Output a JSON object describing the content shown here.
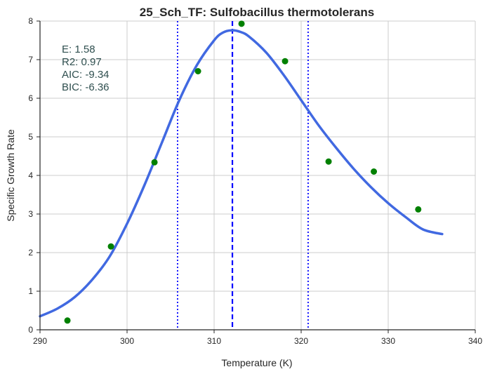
{
  "chart_data": {
    "type": "line",
    "title": "25_Sch_TF: Sulfobacillus thermotolerans",
    "xlabel": "Temperature (K)",
    "ylabel": "Specific Growth Rate",
    "xlim": [
      290,
      340
    ],
    "ylim": [
      0,
      8
    ],
    "xticks": [
      290,
      300,
      310,
      320,
      330,
      340
    ],
    "yticks": [
      0,
      1,
      2,
      3,
      4,
      5,
      6,
      7,
      8
    ],
    "grid": true,
    "stats": [
      "E:  1.58",
      "R2:  0.97",
      "AIC: -9.34",
      "BIC: -6.36"
    ],
    "points": {
      "color": "#008000",
      "x": [
        293.15,
        298.15,
        303.15,
        308.15,
        313.15,
        318.15,
        323.15,
        328.35,
        333.45
      ],
      "y": [
        0.24,
        2.16,
        4.34,
        6.7,
        7.93,
        6.96,
        4.36,
        4.1,
        3.12
      ]
    },
    "fit_curve": {
      "color": "#4169e1",
      "x": [
        290,
        292,
        294,
        296,
        298,
        300,
        302,
        304,
        306,
        308,
        310,
        311,
        312,
        313,
        314,
        316,
        318,
        320,
        322,
        324,
        326,
        328,
        330,
        332,
        334,
        336.2
      ],
      "y": [
        0.35,
        0.55,
        0.85,
        1.3,
        1.9,
        2.75,
        3.75,
        4.85,
        5.95,
        6.85,
        7.5,
        7.7,
        7.76,
        7.72,
        7.6,
        7.18,
        6.6,
        5.95,
        5.3,
        4.72,
        4.18,
        3.7,
        3.28,
        2.92,
        2.6,
        2.48
      ]
    },
    "vlines": [
      {
        "x": 312.1,
        "style": "dashed",
        "color": "#0000ff"
      },
      {
        "x": 305.8,
        "style": "dotted",
        "color": "#0000ff"
      },
      {
        "x": 320.8,
        "style": "dotted",
        "color": "#0000ff"
      }
    ]
  }
}
